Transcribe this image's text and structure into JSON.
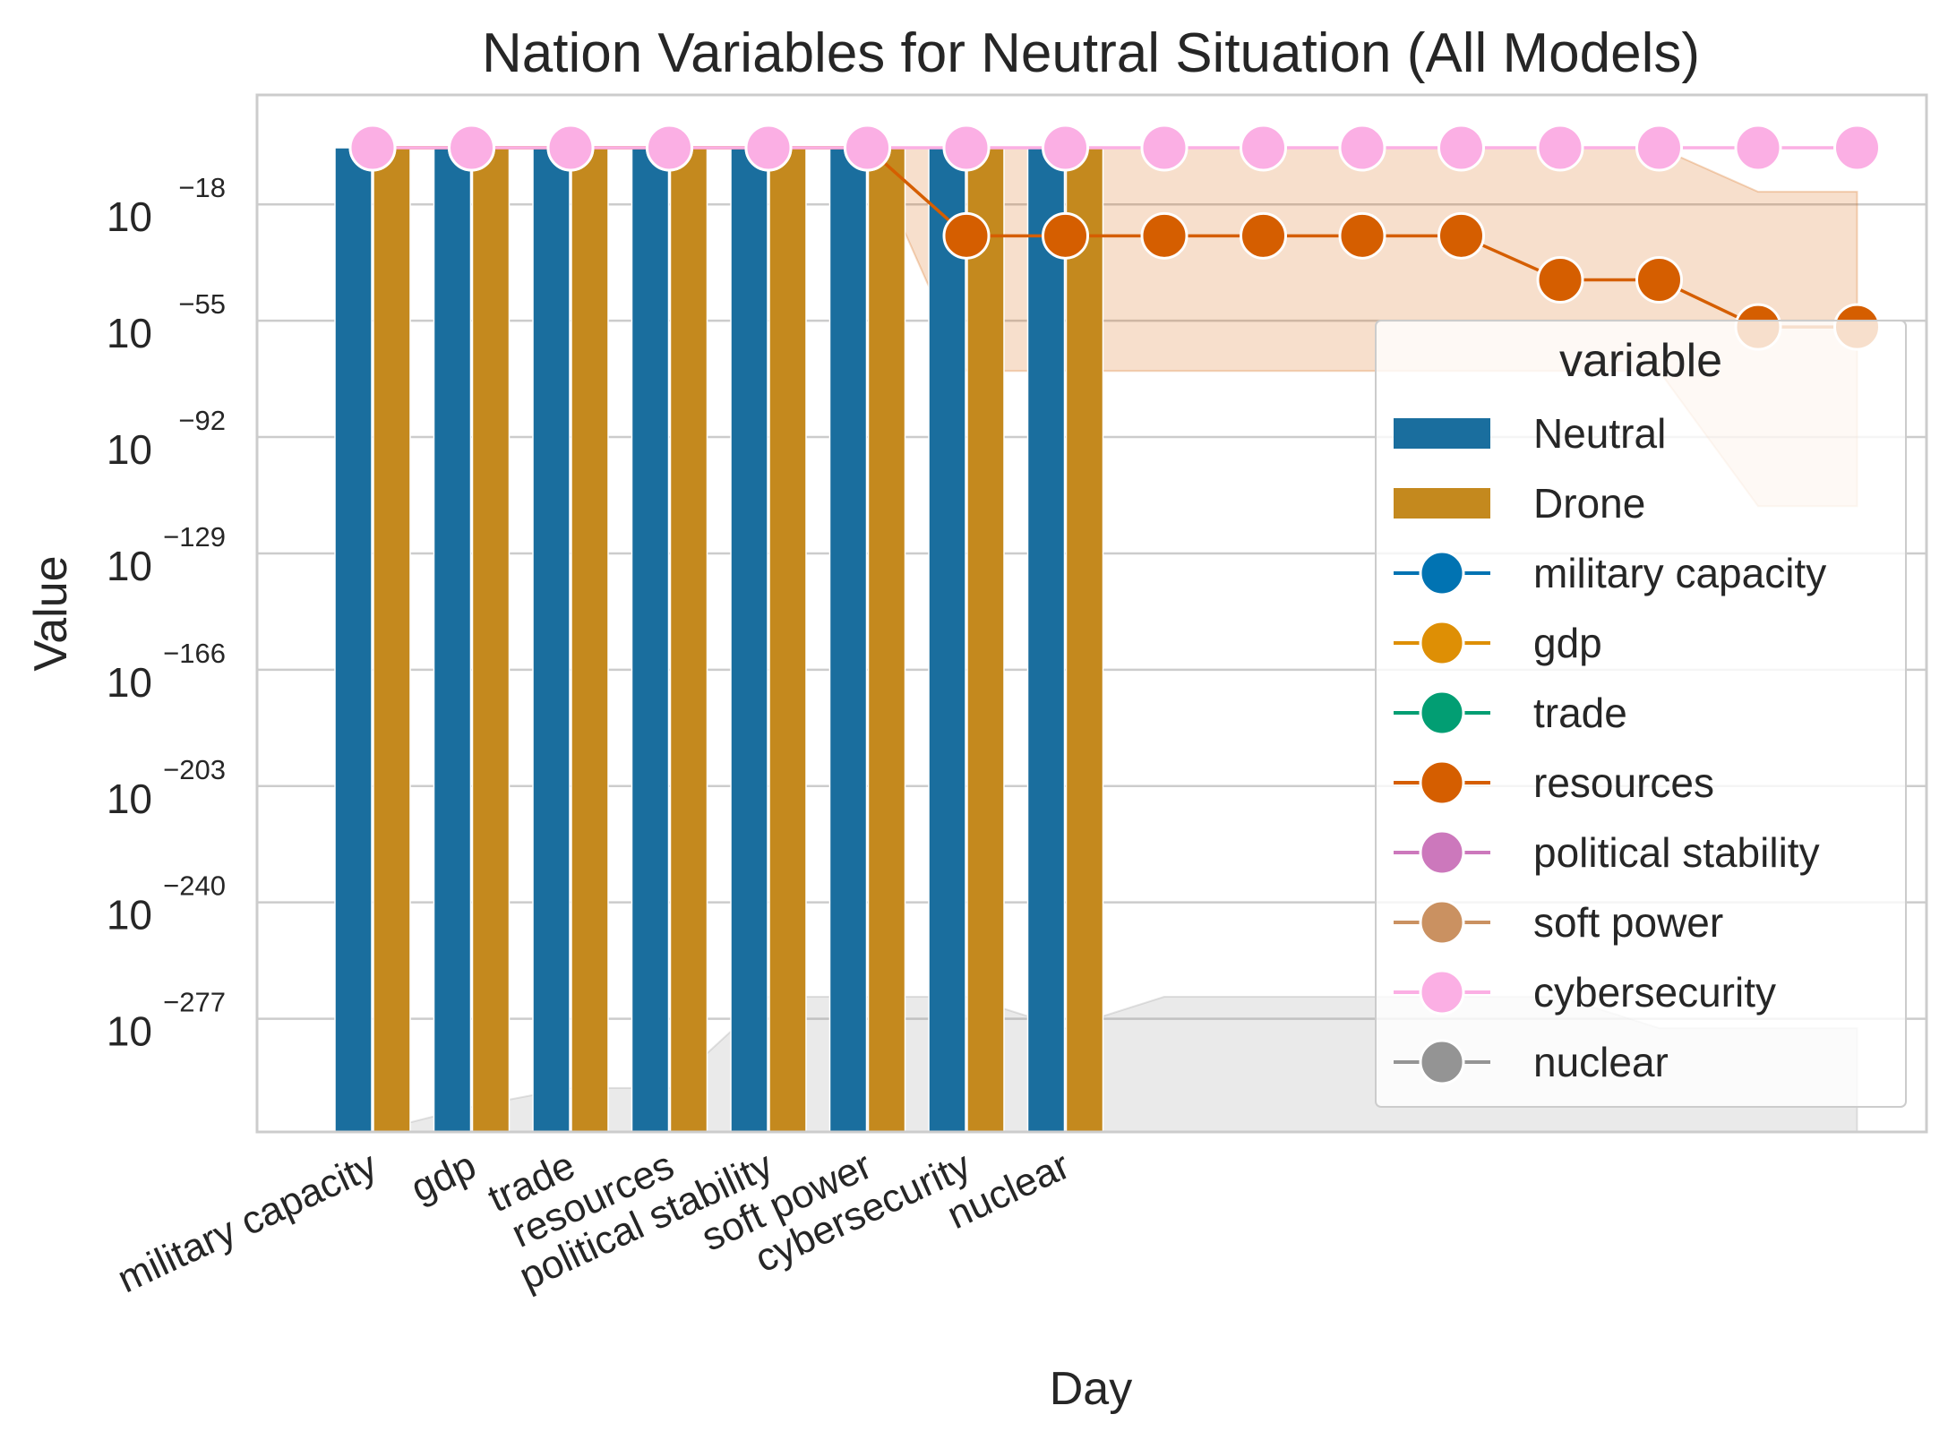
{
  "chart_data": {
    "type": "bar",
    "title": "Nation Variables for Neutral Situation (All Models)",
    "xlabel": "Day",
    "ylabel": "Value",
    "yscale": "log",
    "y_ticks": [
      {
        "base": "10",
        "exp": "−18"
      },
      {
        "base": "10",
        "exp": "−55"
      },
      {
        "base": "10",
        "exp": "−92"
      },
      {
        "base": "10",
        "exp": "−129"
      },
      {
        "base": "10",
        "exp": "−166"
      },
      {
        "base": "10",
        "exp": "−203"
      },
      {
        "base": "10",
        "exp": "−240"
      },
      {
        "base": "10",
        "exp": "−277"
      }
    ],
    "y_tick_exponents": [
      -18,
      -55,
      -92,
      -129,
      -166,
      -203,
      -240,
      -277
    ],
    "ylim_log10": [
      -313,
      1
    ],
    "grid": true,
    "categories": [
      "military capacity",
      "gdp",
      "trade",
      "resources",
      "political stability",
      "soft power",
      "cybersecurity",
      "nuclear"
    ],
    "bar_series": [
      {
        "name": "Neutral",
        "color": "#1a6e9e",
        "values_log10": [
          0,
          0,
          0,
          0,
          0,
          0,
          0,
          0
        ]
      },
      {
        "name": "Drone",
        "color": "#c4891e",
        "values_log10": [
          0,
          0,
          0,
          0,
          0,
          0,
          0,
          0
        ]
      }
    ],
    "line_x_count": 16,
    "line_series": [
      {
        "name": "military capacity",
        "color": "#0173b2",
        "values_log10": []
      },
      {
        "name": "gdp",
        "color": "#de8f05",
        "values_log10": []
      },
      {
        "name": "trade",
        "color": "#029e73",
        "values_log10": []
      },
      {
        "name": "resources",
        "color": "#d55e00",
        "values_log10": [
          0,
          0,
          0,
          0,
          0,
          0,
          -28,
          -28,
          -28,
          -28,
          -28,
          -28,
          -42,
          -42,
          -57,
          -57
        ],
        "band": {
          "upper": [
            0,
            0,
            0,
            0,
            0,
            0,
            0,
            0,
            0,
            0,
            0,
            0,
            0,
            0,
            -14,
            -14
          ],
          "lower": [
            0,
            0,
            0,
            0,
            0,
            0,
            -71,
            -71,
            -71,
            -71,
            -71,
            -71,
            -71,
            -71,
            -114,
            -114
          ]
        }
      },
      {
        "name": "political stability",
        "color": "#cc78bc",
        "values_log10": []
      },
      {
        "name": "soft power",
        "color": "#ca9161",
        "values_log10": []
      },
      {
        "name": "cybersecurity",
        "color": "#fbafe4",
        "values_log10": [
          0,
          0,
          0,
          0,
          0,
          0,
          0,
          0,
          0,
          0,
          0,
          0,
          0,
          0,
          0,
          0
        ]
      },
      {
        "name": "nuclear",
        "color": "#949494",
        "values_log10": [],
        "band": {
          "upper": [
            -313,
            -305,
            -299,
            -299,
            -270,
            -270,
            -270,
            -280,
            -270,
            -270,
            -270,
            -270,
            -270,
            -280,
            -280,
            -280
          ],
          "lower": [
            -313,
            -313,
            -313,
            -313,
            -313,
            -313,
            -313,
            -313,
            -313,
            -313,
            -313,
            -313,
            -313,
            -313,
            -313,
            -313
          ]
        }
      }
    ],
    "legend": {
      "title": "variable",
      "placement": "right"
    }
  }
}
